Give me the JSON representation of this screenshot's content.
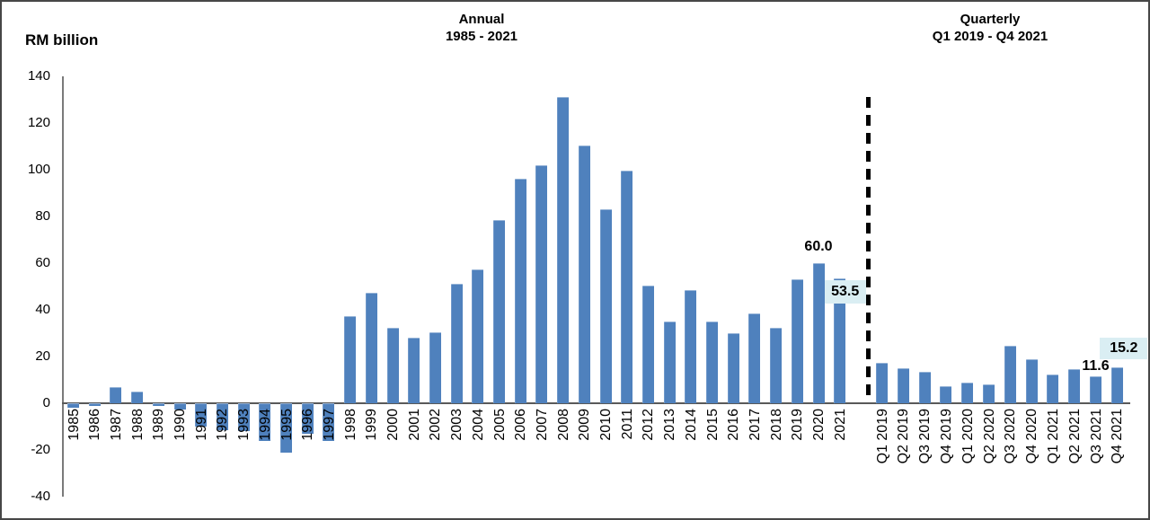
{
  "figure": {
    "y_axis_title": "RM billion",
    "panel_titles": {
      "annual_line1": "Annual",
      "annual_line2": "1985 - 2021",
      "quarterly_line1": "Quarterly",
      "quarterly_line2": "Q1 2019 - Q4 2021"
    }
  },
  "colors": {
    "bar": "#4F81BD",
    "annotation_box_bg": "#DAEEF3",
    "axis_line": "#7A7A7A",
    "divider": "#000000",
    "background": "#FFFFFF"
  },
  "chart_data": {
    "type": "bar",
    "unit": "RM billion",
    "grid": "off",
    "y_axis": {
      "min": -40,
      "max": 140,
      "tick_step": 20,
      "ticks": [
        "140",
        "120",
        "100",
        "80",
        "60",
        "40",
        "20",
        "0",
        "-20",
        "-40"
      ]
    },
    "annual": {
      "title": "Annual 1985 - 2021",
      "categories": [
        "1985",
        "1986",
        "1987",
        "1988",
        "1989",
        "1990",
        "1991",
        "1992",
        "1993",
        "1994",
        "1995",
        "1996",
        "1997",
        "1998",
        "1999",
        "2000",
        "2001",
        "2002",
        "2003",
        "2004",
        "2005",
        "2006",
        "2007",
        "2008",
        "2009",
        "2010",
        "2011",
        "2012",
        "2013",
        "2014",
        "2015",
        "2016",
        "2017",
        "2018",
        "2019",
        "2020",
        "2021"
      ],
      "values": [
        -2,
        -1,
        7,
        5,
        -1,
        -2.5,
        -10,
        -11.5,
        -12,
        -16,
        -21,
        -13,
        -16,
        37.5,
        47.5,
        32.5,
        28,
        30.5,
        51,
        57.5,
        78.5,
        96,
        102,
        131,
        110.5,
        83,
        99.5,
        50.5,
        35,
        48.5,
        35,
        30,
        38.5,
        32.5,
        53,
        60,
        53.5
      ]
    },
    "quarterly": {
      "title": "Quarterly Q1 2019 - Q4 2021",
      "categories": [
        "Q1 2019",
        "Q2 2019",
        "Q3 2019",
        "Q4 2019",
        "Q1 2020",
        "Q2 2020",
        "Q3 2020",
        "Q4 2020",
        "Q1 2021",
        "Q2 2021",
        "Q3 2021",
        "Q4 2021"
      ],
      "values": [
        17.5,
        15,
        13.5,
        7.5,
        9,
        8,
        24.5,
        19,
        12.5,
        14.5,
        11.6,
        15.2
      ]
    },
    "annotations": [
      {
        "panel": "annual",
        "category": "2020",
        "text": "60.0",
        "style": "plain"
      },
      {
        "panel": "annual",
        "category": "2021",
        "text": "53.5",
        "style": "boxed"
      },
      {
        "panel": "quarterly",
        "category": "Q3 2021",
        "text": "11.6",
        "style": "plain"
      },
      {
        "panel": "quarterly",
        "category": "Q4 2021",
        "text": "15.2",
        "style": "boxed"
      }
    ],
    "divider": {
      "style": "dashed-vertical-line",
      "between": [
        "2021",
        "Q1 2019"
      ]
    }
  }
}
